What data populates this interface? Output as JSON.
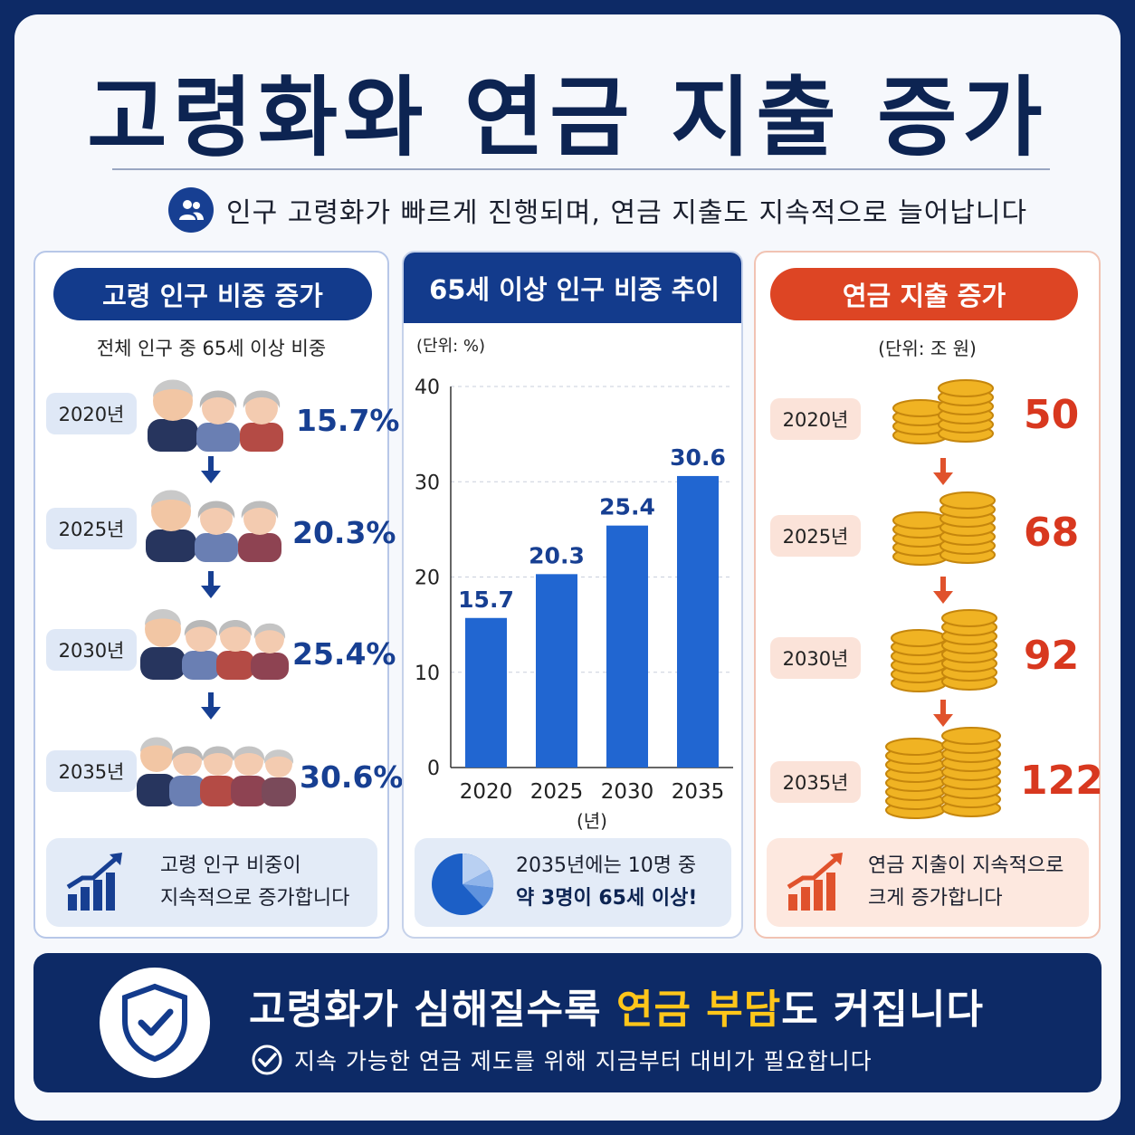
{
  "title": "고령화와 연금 지출 증가",
  "subtitle": "인구 고령화가 빠르게 진행되며, 연금 지출도 지속적으로 늘어납니다",
  "left_panel": {
    "heading": "고령 인구 비중 증가",
    "note": "전체 인구 중 65세 이상 비중",
    "rows": [
      {
        "year": "2020년",
        "value": "15.7%"
      },
      {
        "year": "2025년",
        "value": "20.3%"
      },
      {
        "year": "2030년",
        "value": "25.4%"
      },
      {
        "year": "2035년",
        "value": "30.6%"
      }
    ],
    "summary_line1": "고령 인구 비중이",
    "summary_line2": "지속적으로 증가합니다"
  },
  "mid_panel": {
    "heading": "65세 이상 인구 비중 추이",
    "summary_line1": "2035년에는 10명 중",
    "summary_line2": "약 3명이 65세 이상!"
  },
  "right_panel": {
    "heading": "연금 지출 증가",
    "note": "(단위: 조 원)",
    "rows": [
      {
        "year": "2020년",
        "value": "50"
      },
      {
        "year": "2025년",
        "value": "68"
      },
      {
        "year": "2030년",
        "value": "92"
      },
      {
        "year": "2035년",
        "value": "122"
      }
    ],
    "summary_line1": "연금 지출이 지속적으로",
    "summary_line2": "크게 증가합니다"
  },
  "chart_data": {
    "type": "bar",
    "unit_label": "(단위: %)",
    "categories": [
      "2020",
      "2025",
      "2030",
      "2035"
    ],
    "values": [
      15.7,
      20.3,
      25.4,
      30.6
    ],
    "xlabel": "(년)",
    "ylabel": "",
    "ylim": [
      0,
      40
    ],
    "yticks": [
      "0",
      "10",
      "20",
      "30",
      "40"
    ],
    "grid": true,
    "bar_color": "#2166d1"
  },
  "bottom": {
    "main_prefix": "고령화가 심해질수록 ",
    "main_highlight": "연금 부담",
    "main_suffix": "도 커집니다",
    "sub": "지속 가능한 연금 제도를 위해 지금부터 대비가 필요합니다"
  },
  "colors": {
    "navy": "#0d2a66",
    "blue": "#173f92",
    "red": "#dd4524",
    "gold": "#ffc61a"
  }
}
